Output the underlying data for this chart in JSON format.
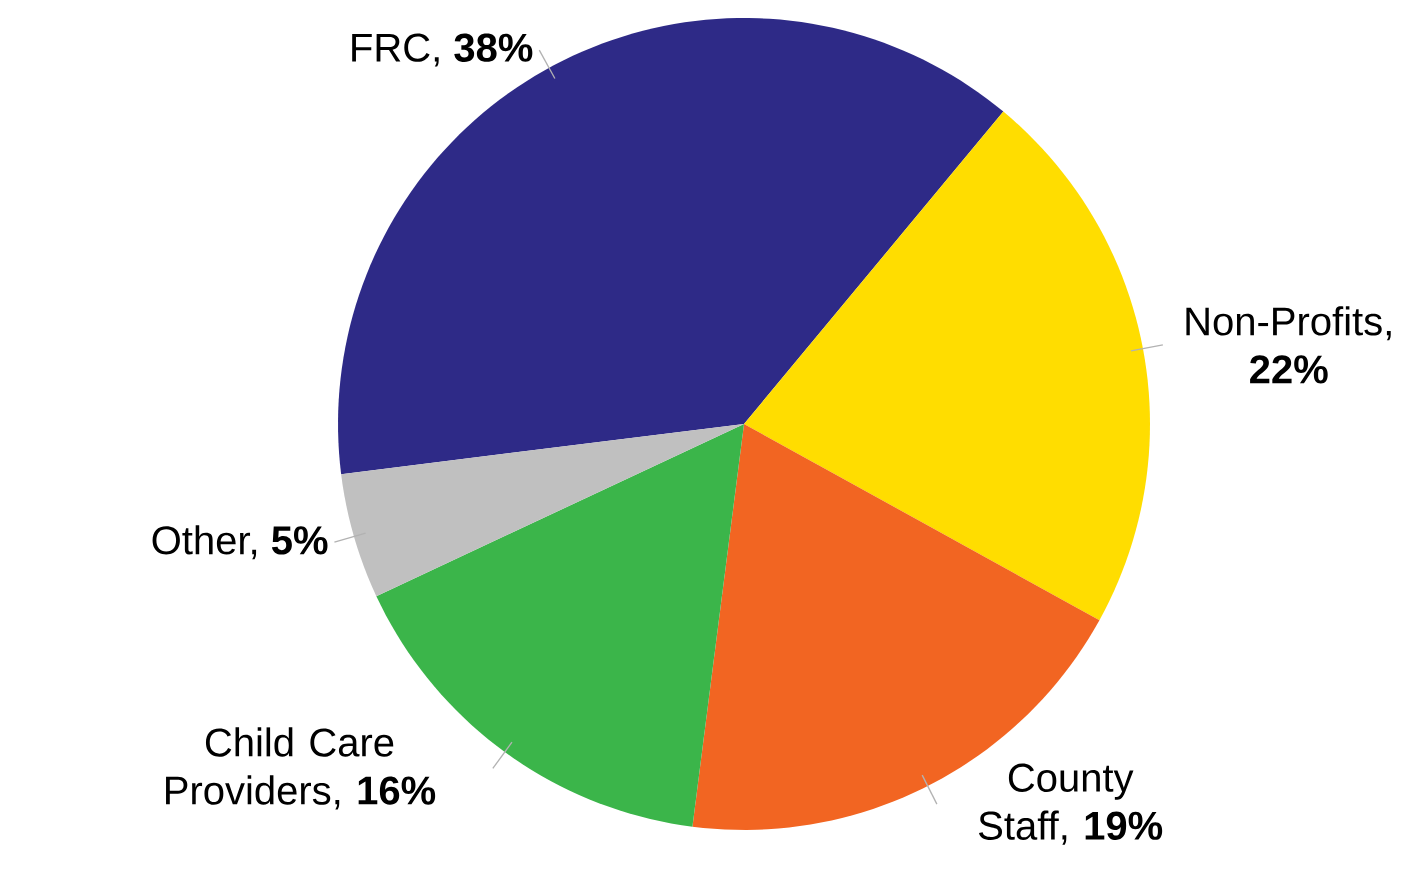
{
  "chart_data": {
    "type": "pie",
    "categories": [
      "FRC, **38%**",
      "Non-Profits, **22%**",
      "County Staff, **19%**",
      "Child Care Providers, **16%**",
      "Other, **5%**"
    ],
    "values": [
      38,
      22,
      19,
      16,
      5
    ],
    "colors": [
      "#2e2a87",
      "#ffdd00",
      "#f26522",
      "#3bb54a",
      "#c0c0c0"
    ]
  }
}
